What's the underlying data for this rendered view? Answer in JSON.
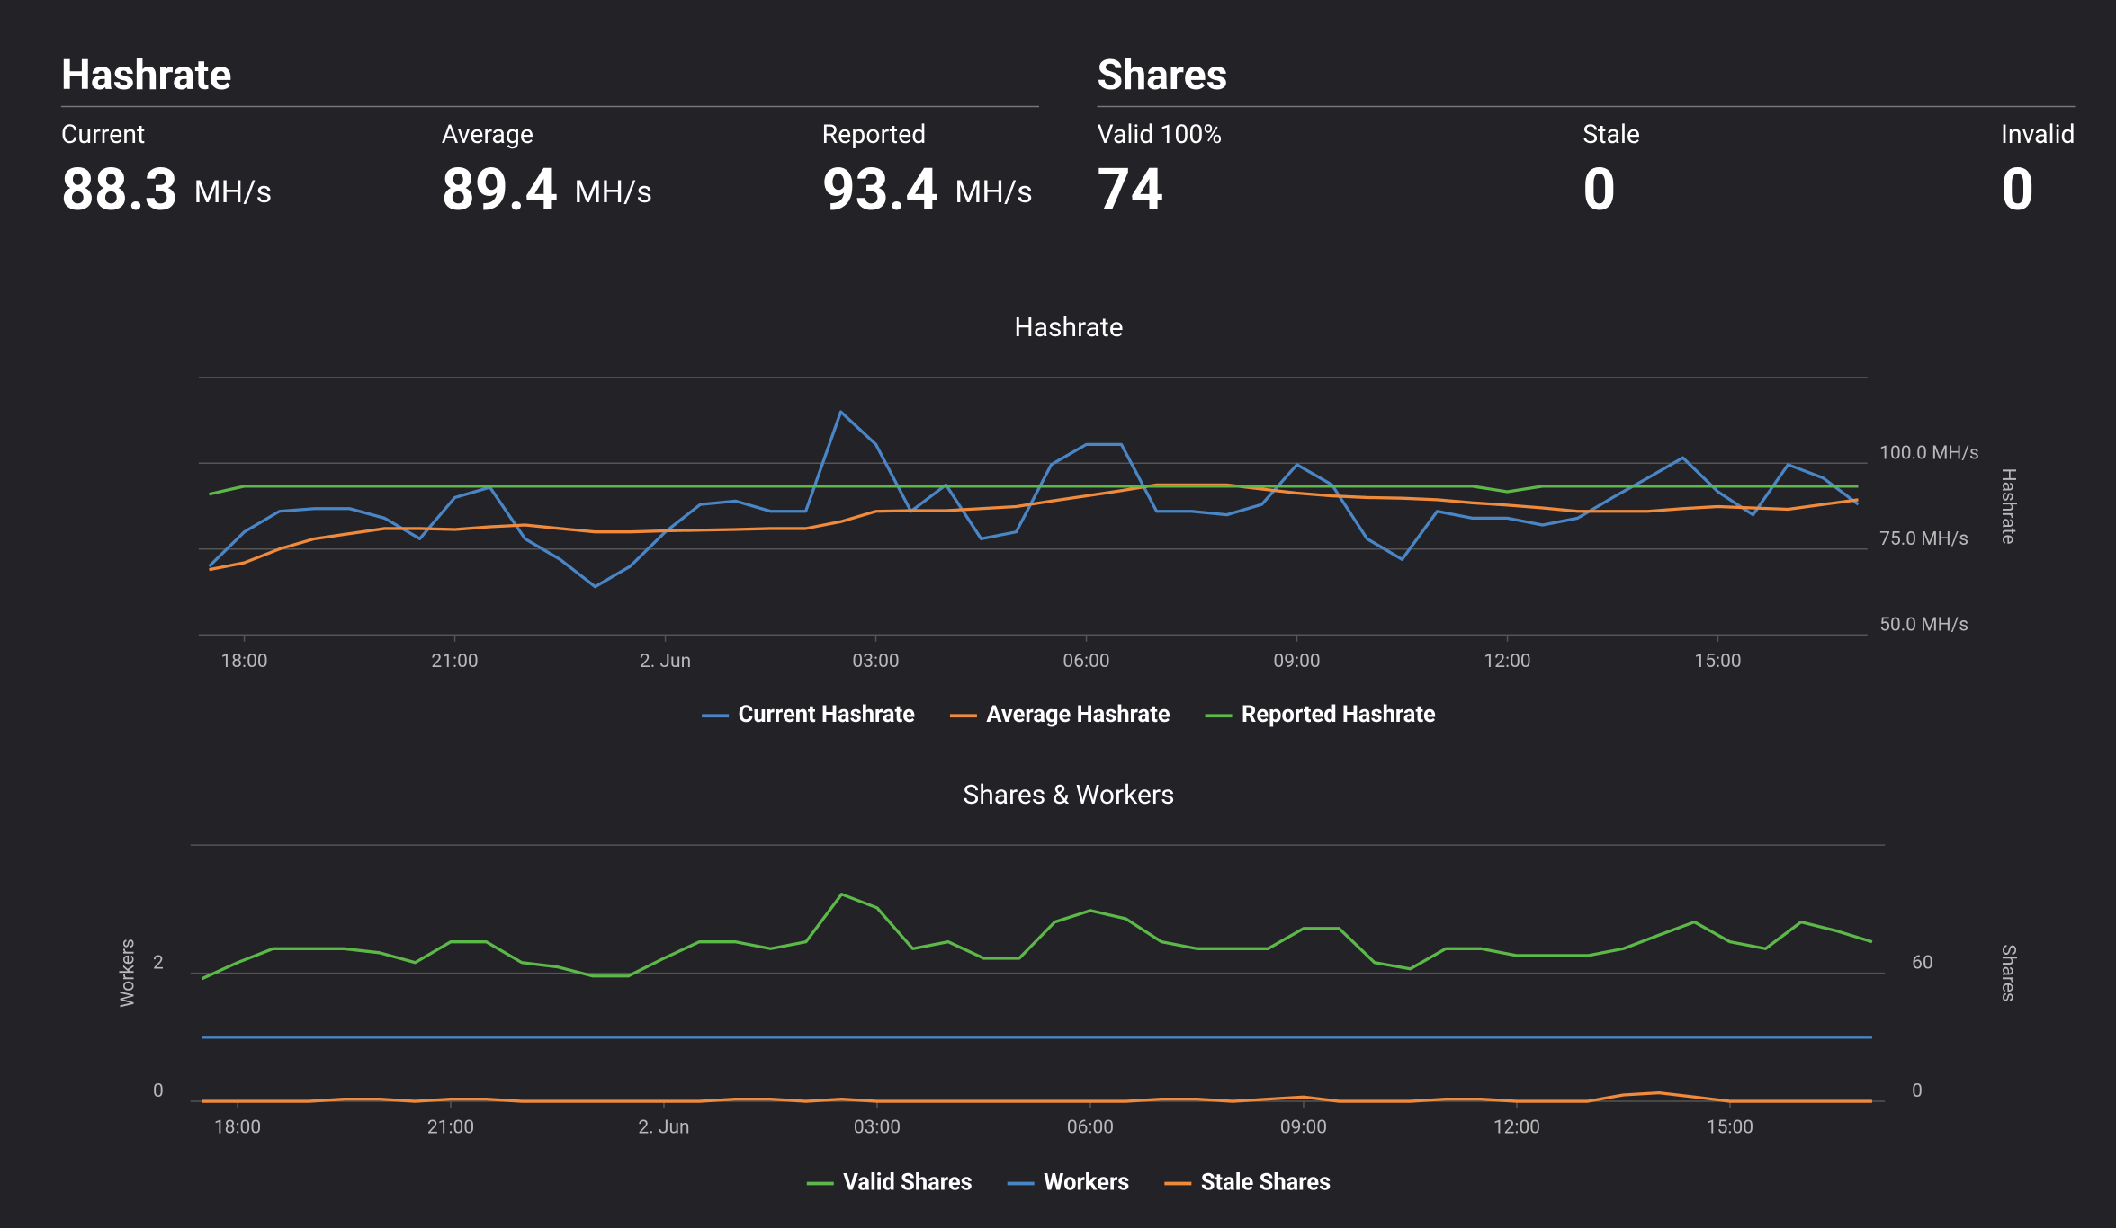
{
  "stats": {
    "hashrate": {
      "title": "Hashrate",
      "items": [
        {
          "label": "Current",
          "value": 88.3,
          "unit": "MH/s"
        },
        {
          "label": "Average",
          "value": 89.4,
          "unit": "MH/s"
        },
        {
          "label": "Reported",
          "value": 93.4,
          "unit": "MH/s"
        }
      ]
    },
    "shares": {
      "title": "Shares",
      "items": [
        {
          "label": "Valid 100%",
          "value": 74
        },
        {
          "label": "Stale",
          "value": 0
        },
        {
          "label": "Invalid",
          "value": 0
        }
      ]
    }
  },
  "chart_data": [
    {
      "type": "line",
      "title": "Hashrate",
      "y_label": "Hashrate",
      "y_axis_position": "right",
      "grid": true,
      "xlim": [
        17.35,
        41.13
      ],
      "ylim": [
        50,
        125
      ],
      "xticks": [
        {
          "value": 18,
          "label": "18:00"
        },
        {
          "value": 21,
          "label": "21:00"
        },
        {
          "value": 24,
          "label": "2. Jun"
        },
        {
          "value": 27,
          "label": "03:00"
        },
        {
          "value": 30,
          "label": "06:00"
        },
        {
          "value": 33,
          "label": "09:00"
        },
        {
          "value": 36,
          "label": "12:00"
        },
        {
          "value": 39,
          "label": "15:00"
        }
      ],
      "yticks": [
        {
          "value": 50,
          "label": "50.0 MH/s"
        },
        {
          "value": 75,
          "label": "75.0 MH/s"
        },
        {
          "value": 100,
          "label": "100.0 MH/s"
        }
      ],
      "x": [
        17.5,
        18,
        18.5,
        19,
        19.5,
        20,
        20.5,
        21,
        21.5,
        22,
        22.5,
        23,
        23.5,
        24,
        24.5,
        25,
        25.5,
        26,
        26.5,
        27,
        27.5,
        28,
        28.5,
        29,
        29.5,
        30,
        30.5,
        31,
        31.5,
        32,
        32.5,
        33,
        33.5,
        34,
        34.5,
        35,
        35.5,
        36,
        36.5,
        37,
        37.5,
        38,
        38.5,
        39,
        39.5,
        40,
        40.5,
        41
      ],
      "series": [
        {
          "name": "Current Hashrate",
          "color": "#4a86c5",
          "values": [
            70,
            80,
            86,
            86.8,
            86.8,
            84,
            78,
            90,
            93,
            78,
            72,
            64,
            70,
            80,
            88,
            89,
            86,
            86,
            115,
            105.5,
            86,
            93.7,
            78,
            80,
            99.6,
            105.5,
            105.5,
            86,
            86,
            85,
            88,
            99.6,
            93.7,
            78,
            72,
            86,
            84,
            84,
            82,
            84,
            90,
            95.7,
            101.6,
            91.7,
            85,
            99.6,
            95.7,
            88
          ]
        },
        {
          "name": "Average Hashrate",
          "color": "#f08a3c",
          "values": [
            69,
            71,
            75,
            78,
            79.5,
            81,
            81,
            80.7,
            81.5,
            82,
            81,
            80,
            80,
            80.3,
            80.5,
            80.7,
            81,
            81,
            83,
            86,
            86.2,
            86.2,
            86.8,
            87.4,
            89,
            90.5,
            92,
            93.7,
            93.7,
            93.7,
            92.5,
            91.3,
            90.5,
            90,
            89.8,
            89.4,
            88.5,
            87.8,
            87,
            86,
            86,
            86,
            86.8,
            87.4,
            87,
            86.6,
            88,
            89.4
          ]
        },
        {
          "name": "Reported Hashrate",
          "color": "#5cb848",
          "values": [
            91,
            93.3,
            93.3,
            93.3,
            93.3,
            93.3,
            93.3,
            93.3,
            93.3,
            93.3,
            93.3,
            93.3,
            93.3,
            93.3,
            93.3,
            93.3,
            93.3,
            93.3,
            93.3,
            93.3,
            93.3,
            93.3,
            93.3,
            93.3,
            93.3,
            93.3,
            93.3,
            93.3,
            93.3,
            93.3,
            93.3,
            93.3,
            93.3,
            93.3,
            93.3,
            93.3,
            93.3,
            91.7,
            93.3,
            93.3,
            93.3,
            93.3,
            93.3,
            93.3,
            93.3,
            93.3,
            93.3,
            93.3
          ]
        }
      ]
    },
    {
      "type": "line",
      "title": "Shares & Workers",
      "y_label": "Workers",
      "y2_label": "Shares",
      "grid": true,
      "xlim": [
        17.34,
        41.18
      ],
      "ylim": [
        0,
        4
      ],
      "y2lim": [
        0,
        120
      ],
      "xticks": [
        {
          "value": 18,
          "label": "18:00"
        },
        {
          "value": 21,
          "label": "21:00"
        },
        {
          "value": 24,
          "label": "2. Jun"
        },
        {
          "value": 27,
          "label": "03:00"
        },
        {
          "value": 30,
          "label": "06:00"
        },
        {
          "value": 33,
          "label": "09:00"
        },
        {
          "value": 36,
          "label": "12:00"
        },
        {
          "value": 39,
          "label": "15:00"
        }
      ],
      "yticks": [
        0,
        2
      ],
      "y2ticks": [
        0,
        60
      ],
      "x": [
        17.5,
        18,
        18.5,
        19,
        19.5,
        20,
        20.5,
        21,
        21.5,
        22,
        22.5,
        23,
        23.5,
        24,
        24.5,
        25,
        25.5,
        26,
        26.5,
        27,
        27.5,
        28,
        28.5,
        29,
        29.5,
        30,
        30.5,
        31,
        31.5,
        32,
        32.5,
        33,
        33.5,
        34,
        34.5,
        35,
        35.5,
        36,
        36.5,
        37,
        37.5,
        38,
        38.5,
        39,
        39.5,
        40,
        40.5,
        41
      ],
      "series": [
        {
          "name": "Valid Shares",
          "color": "#5cb848",
          "axis": "y2",
          "values": [
            57.4,
            65,
            71.5,
            71.5,
            71.5,
            69.6,
            65,
            74.7,
            74.7,
            65,
            63,
            58.7,
            58.7,
            67,
            74.7,
            74.7,
            71.5,
            74.7,
            97,
            90.6,
            71.5,
            74.7,
            67,
            67,
            84,
            89.4,
            85.5,
            74.7,
            71.5,
            71.5,
            71.5,
            81,
            81,
            65,
            62,
            71.5,
            71.5,
            68.3,
            68.3,
            68.3,
            71.5,
            77.9,
            84,
            74.7,
            71.5,
            84,
            79.8,
            74.7
          ]
        },
        {
          "name": "Workers",
          "color": "#4a86c5",
          "axis": "y",
          "values": [
            1,
            1,
            1,
            1,
            1,
            1,
            1,
            1,
            1,
            1,
            1,
            1,
            1,
            1,
            1,
            1,
            1,
            1,
            1,
            1,
            1,
            1,
            1,
            1,
            1,
            1,
            1,
            1,
            1,
            1,
            1,
            1,
            1,
            1,
            1,
            1,
            1,
            1,
            1,
            1,
            1,
            1,
            1,
            1,
            1,
            1,
            1,
            1
          ]
        },
        {
          "name": "Stale Shares",
          "color": "#f08a3c",
          "axis": "y2",
          "values": [
            0,
            0,
            0,
            0,
            1,
            1,
            0,
            1,
            1,
            0,
            0,
            0,
            0,
            0,
            0,
            1,
            1,
            0,
            1,
            0,
            0,
            0,
            0,
            0,
            0,
            0,
            0,
            1,
            1,
            0,
            1,
            2,
            0,
            0,
            0,
            1,
            1,
            0,
            0,
            0,
            3,
            4,
            2,
            0,
            0,
            0,
            0,
            0
          ]
        }
      ]
    }
  ]
}
